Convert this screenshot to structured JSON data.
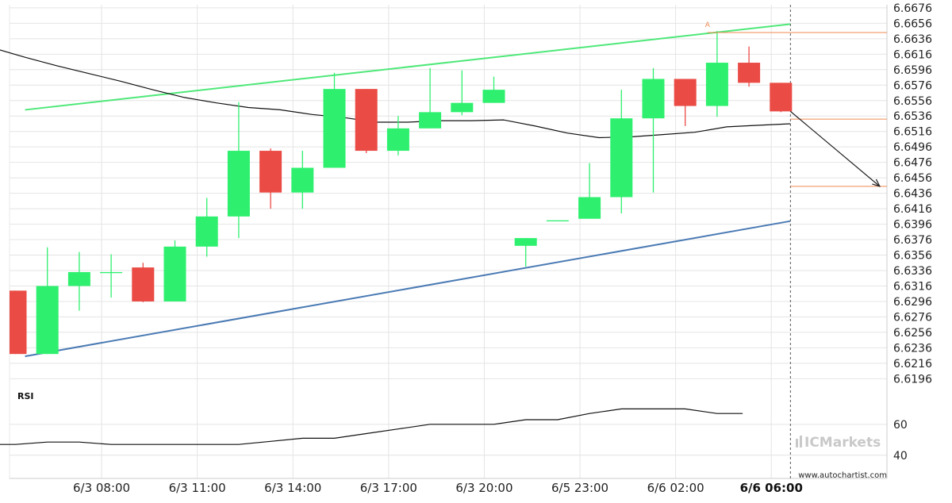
{
  "chart_data": {
    "type": "candlestick",
    "ylim": [
      6.6183,
      6.668
    ],
    "y_ticks": [
      "6.6676",
      "6.6656",
      "6.6636",
      "6.6616",
      "6.6596",
      "6.6576",
      "6.6556",
      "6.6536",
      "6.6516",
      "6.6496",
      "6.6476",
      "6.6456",
      "6.6436",
      "6.6416",
      "6.6396",
      "6.6376",
      "6.6356",
      "6.6336",
      "6.6316",
      "6.6296",
      "6.6276",
      "6.6256",
      "6.6236",
      "6.6216",
      "6.6196"
    ],
    "x_ticks": [
      {
        "label": "6/3 08:00",
        "index": 2.7
      },
      {
        "label": "6/3 11:00",
        "index": 5.7
      },
      {
        "label": "6/3 14:00",
        "index": 8.7
      },
      {
        "label": "6/3 17:00",
        "index": 11.7
      },
      {
        "label": "6/3 20:00",
        "index": 14.7
      },
      {
        "label": "6/5 23:00",
        "index": 17.7
      },
      {
        "label": "6/6 02:00",
        "index": 20.7
      },
      {
        "label": "6/6 06:00",
        "index": 23.7,
        "bold": true
      }
    ],
    "candles": [
      {
        "o": 6.631,
        "h": 6.631,
        "l": 6.6228,
        "c": 6.6228
      },
      {
        "o": 6.6228,
        "h": 6.6366,
        "l": 6.6228,
        "c": 6.6316
      },
      {
        "o": 6.6316,
        "h": 6.636,
        "l": 6.6284,
        "c": 6.6334
      },
      {
        "o": 6.6334,
        "h": 6.6357,
        "l": 6.6301,
        "c": 6.6334
      },
      {
        "o": 6.634,
        "h": 6.6346,
        "l": 6.6295,
        "c": 6.6296
      },
      {
        "o": 6.6296,
        "h": 6.6375,
        "l": 6.6296,
        "c": 6.6367
      },
      {
        "o": 6.6367,
        "h": 6.643,
        "l": 6.6354,
        "c": 6.6406
      },
      {
        "o": 6.6406,
        "h": 6.6554,
        "l": 6.6378,
        "c": 6.6491
      },
      {
        "o": 6.6491,
        "h": 6.6494,
        "l": 6.6416,
        "c": 6.6437
      },
      {
        "o": 6.6437,
        "h": 6.6491,
        "l": 6.6416,
        "c": 6.6469
      },
      {
        "o": 6.6469,
        "h": 6.6592,
        "l": 6.6469,
        "c": 6.6571
      },
      {
        "o": 6.6571,
        "h": 6.6571,
        "l": 6.6488,
        "c": 6.6491
      },
      {
        "o": 6.6491,
        "h": 6.6536,
        "l": 6.6485,
        "c": 6.652
      },
      {
        "o": 6.652,
        "h": 6.6598,
        "l": 6.652,
        "c": 6.6541
      },
      {
        "o": 6.6541,
        "h": 6.6595,
        "l": 6.6537,
        "c": 6.6553
      },
      {
        "o": 6.6553,
        "h": 6.6587,
        "l": 6.6553,
        "c": 6.657
      },
      {
        "o": 6.6368,
        "h": 6.6378,
        "l": 6.6341,
        "c": 6.6378
      },
      {
        "o": 6.6401,
        "h": 6.6401,
        "l": 6.6401,
        "c": 6.6401
      },
      {
        "o": 6.6403,
        "h": 6.6475,
        "l": 6.6403,
        "c": 6.6431
      },
      {
        "o": 6.6431,
        "h": 6.657,
        "l": 6.641,
        "c": 6.6533
      },
      {
        "o": 6.6533,
        "h": 6.6598,
        "l": 6.6437,
        "c": 6.6584
      },
      {
        "o": 6.6584,
        "h": 6.6584,
        "l": 6.6523,
        "c": 6.6549
      },
      {
        "o": 6.6549,
        "h": 6.6646,
        "l": 6.6535,
        "c": 6.6605
      },
      {
        "o": 6.6605,
        "h": 6.6626,
        "l": 6.6574,
        "c": 6.6579
      },
      {
        "o": 6.6579,
        "h": 6.6579,
        "l": 6.6541,
        "c": 6.6542
      }
    ],
    "moving_average": [
      {
        "i": -0.7,
        "v": 6.6624
      },
      {
        "i": 0.3,
        "v": 6.6612
      },
      {
        "i": 1.3,
        "v": 6.6601
      },
      {
        "i": 2.3,
        "v": 6.6591
      },
      {
        "i": 3.3,
        "v": 6.6581
      },
      {
        "i": 4.3,
        "v": 6.657
      },
      {
        "i": 5.3,
        "v": 6.656
      },
      {
        "i": 6.3,
        "v": 6.6553
      },
      {
        "i": 7.3,
        "v": 6.6547
      },
      {
        "i": 8.3,
        "v": 6.6544
      },
      {
        "i": 9.3,
        "v": 6.6538
      },
      {
        "i": 10.3,
        "v": 6.6534
      },
      {
        "i": 11.3,
        "v": 6.6528
      },
      {
        "i": 12.3,
        "v": 6.6528
      },
      {
        "i": 13.3,
        "v": 6.653
      },
      {
        "i": 14.3,
        "v": 6.653
      },
      {
        "i": 15.3,
        "v": 6.6531
      },
      {
        "i": 16.3,
        "v": 6.6523
      },
      {
        "i": 17.3,
        "v": 6.6514
      },
      {
        "i": 18.3,
        "v": 6.6508
      },
      {
        "i": 19.3,
        "v": 6.6509
      },
      {
        "i": 20.3,
        "v": 6.6512
      },
      {
        "i": 21.3,
        "v": 6.6515
      },
      {
        "i": 22.3,
        "v": 6.6522
      },
      {
        "i": 23.3,
        "v": 6.6524
      },
      {
        "i": 24.3,
        "v": 6.6526
      }
    ],
    "resistance_line": [
      {
        "i": 0.3,
        "v": 6.6544
      },
      {
        "i": 24.3,
        "v": 6.6655
      }
    ],
    "support_line": [
      {
        "i": 0.3,
        "v": 6.6225
      },
      {
        "i": 24.3,
        "v": 6.64
      }
    ],
    "levels": [
      {
        "i_start": 21.7,
        "v": 6.6644
      },
      {
        "i_start": 24.3,
        "v": 6.6532
      },
      {
        "i_start": 24.3,
        "v": 6.6445
      }
    ],
    "forecast_arrow": {
      "from": {
        "i": 24.3,
        "v": 6.6542
      },
      "to": {
        "i": 27.1,
        "v": 6.6445
      }
    },
    "point_marker": {
      "label": "A",
      "i": 21.7,
      "v": 6.6649
    },
    "current_time_index": 24.3,
    "rsi": {
      "label": "RSI",
      "ticks": [
        "60",
        "40"
      ],
      "ylim": [
        25,
        82
      ],
      "values": [
        {
          "i": -1.0,
          "v": 47
        },
        {
          "i": 0.0,
          "v": 47
        },
        {
          "i": 1.0,
          "v": 48.5
        },
        {
          "i": 2.0,
          "v": 48.5
        },
        {
          "i": 3.0,
          "v": 47
        },
        {
          "i": 4.0,
          "v": 47
        },
        {
          "i": 5.0,
          "v": 47
        },
        {
          "i": 6.0,
          "v": 47
        },
        {
          "i": 7.0,
          "v": 47
        },
        {
          "i": 8.0,
          "v": 49
        },
        {
          "i": 9.0,
          "v": 51
        },
        {
          "i": 10.0,
          "v": 51
        },
        {
          "i": 11.0,
          "v": 54
        },
        {
          "i": 12.0,
          "v": 57
        },
        {
          "i": 13.0,
          "v": 60
        },
        {
          "i": 14.0,
          "v": 60
        },
        {
          "i": 15.0,
          "v": 60
        },
        {
          "i": 16.0,
          "v": 63
        },
        {
          "i": 17.0,
          "v": 63
        },
        {
          "i": 18.0,
          "v": 67
        },
        {
          "i": 19.0,
          "v": 70
        },
        {
          "i": 20.0,
          "v": 70
        },
        {
          "i": 21.0,
          "v": 70
        },
        {
          "i": 22.0,
          "v": 67
        },
        {
          "i": 22.8,
          "v": 67
        }
      ]
    },
    "colors": {
      "bull": "#2ef06e",
      "bear": "#ea4b45",
      "resistance": "#4ee879",
      "support": "#4a7ab4",
      "level": "#ef8a50",
      "ma": "#111111",
      "arrow": "#222222",
      "grid": "#e4e4e4"
    }
  },
  "brand": {
    "name": "ICMarkets",
    "site": "www.autochartist.com"
  }
}
